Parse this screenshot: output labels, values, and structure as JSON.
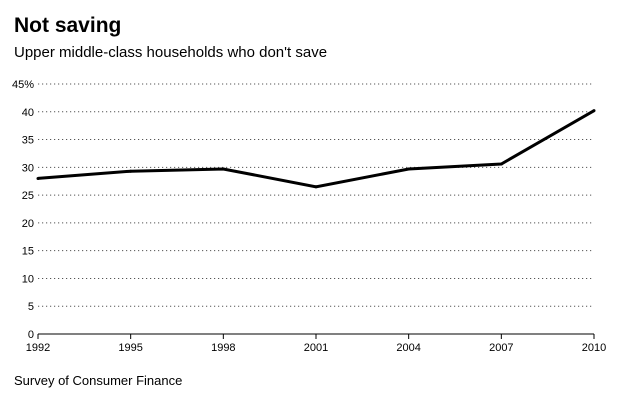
{
  "chart_data": {
    "type": "line",
    "title": "Not saving",
    "subtitle": "Upper middle-class households who don't save",
    "source": "Survey of Consumer Finance",
    "x": [
      1992,
      1995,
      1998,
      2001,
      2004,
      2007,
      2010
    ],
    "y_tick_labels": [
      "0",
      "5",
      "10",
      "15",
      "20",
      "25",
      "30",
      "35",
      "40",
      "45%"
    ],
    "y_ticks": [
      0,
      5,
      10,
      15,
      20,
      25,
      30,
      35,
      40,
      45
    ],
    "series": [
      {
        "values": [
          28,
          29.3,
          29.7,
          26.5,
          29.7,
          30.6,
          40.2
        ],
        "color": "#000000"
      }
    ],
    "xlim": [
      1992,
      2010
    ],
    "ylim": [
      0,
      45
    ],
    "grid": "horizontal dotted",
    "legend": "none"
  }
}
